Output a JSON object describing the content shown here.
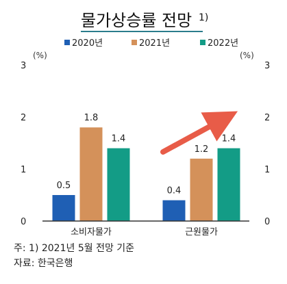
{
  "chart_data": {
    "type": "bar",
    "title": "물가상승률 전망",
    "title_superscript": "1)",
    "categories": [
      "소비자물가",
      "근원물가"
    ],
    "series": [
      {
        "name": "2020년",
        "color": "#1f5fb4",
        "values": [
          0.5,
          0.4
        ]
      },
      {
        "name": "2021년",
        "color": "#d4915a",
        "values": [
          1.8,
          1.2
        ]
      },
      {
        "name": "2022년",
        "color": "#139c86",
        "values": [
          1.4,
          1.4
        ]
      }
    ],
    "value_labels": [
      [
        "0.5",
        "0.4"
      ],
      [
        "1.8",
        "1.2"
      ],
      [
        "1.4",
        "1.4"
      ]
    ],
    "ylim": [
      0,
      3
    ],
    "yticks": [
      0,
      1,
      2,
      3
    ],
    "left_unit": "(%)",
    "right_unit": "(%)",
    "legend_position": "top",
    "grid": false,
    "annotation": {
      "kind": "arrow",
      "color": "#e85c48",
      "from_category": "근원물가"
    }
  },
  "footnote": "주: 1) 2021년 5월 전망 기준",
  "source": "자료: 한국은행"
}
